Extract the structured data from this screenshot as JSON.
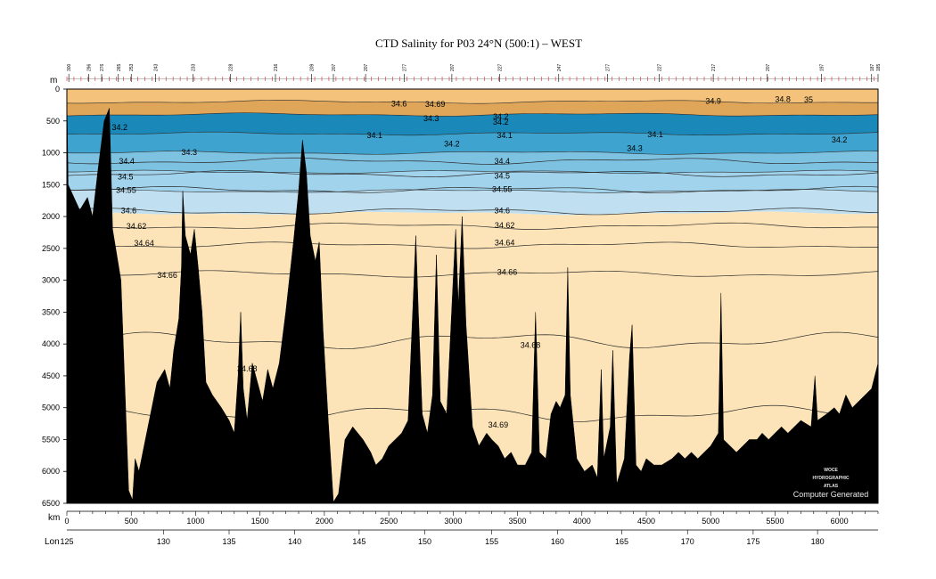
{
  "chart_data": {
    "type": "area",
    "title": "CTD Salinity for P03 24°N (500:1) – WEST",
    "y_unit_label": "m",
    "x_unit_label": "km",
    "lon_label": "Lon",
    "y_axis": {
      "range": [
        0,
        6500
      ],
      "inverted": true,
      "ticks": [
        "0",
        "500",
        "1000",
        "1500",
        "2000",
        "2500",
        "3000",
        "3500",
        "4000",
        "4500",
        "5000",
        "5500",
        "6000",
        "6500"
      ]
    },
    "x_axis": {
      "range": [
        0,
        6300
      ],
      "ticks": [
        "0",
        "500",
        "1000",
        "1500",
        "2000",
        "2500",
        "3000",
        "3500",
        "4000",
        "4500",
        "5000",
        "5500",
        "6000"
      ]
    },
    "lon_axis": {
      "start_value": 125,
      "start_label": "125",
      "ticks": [
        {
          "lon": 130,
          "km": 750,
          "label": "130"
        },
        {
          "lon": 135,
          "km": 1260,
          "label": "135"
        },
        {
          "lon": 140,
          "km": 1770,
          "label": "140"
        },
        {
          "lon": 145,
          "km": 2270,
          "label": "145"
        },
        {
          "lon": 150,
          "km": 2780,
          "label": "150"
        },
        {
          "lon": 155,
          "km": 3300,
          "label": "155"
        },
        {
          "lon": 160,
          "km": 3810,
          "label": "160"
        },
        {
          "lon": 165,
          "km": 4310,
          "label": "165"
        },
        {
          "lon": 170,
          "km": 4820,
          "label": "170"
        },
        {
          "lon": 175,
          "km": 5330,
          "label": "175"
        },
        {
          "lon": 180,
          "km": 5830,
          "label": "180"
        }
      ]
    },
    "stations": [
      {
        "km": 15,
        "label": "300"
      },
      {
        "km": 170,
        "label": "296"
      },
      {
        "km": 270,
        "label": "276"
      },
      {
        "km": 400,
        "label": "265"
      },
      {
        "km": 500,
        "label": "253"
      },
      {
        "km": 690,
        "label": "243"
      },
      {
        "km": 980,
        "label": "233"
      },
      {
        "km": 1270,
        "label": "228"
      },
      {
        "km": 1620,
        "label": "216"
      },
      {
        "km": 1900,
        "label": "209"
      },
      {
        "km": 2070,
        "label": "207"
      },
      {
        "km": 2320,
        "label": "207"
      },
      {
        "km": 2620,
        "label": "277"
      },
      {
        "km": 2990,
        "label": "207"
      },
      {
        "km": 3360,
        "label": "227"
      },
      {
        "km": 3820,
        "label": "247"
      },
      {
        "km": 4200,
        "label": "277"
      },
      {
        "km": 4600,
        "label": "227"
      },
      {
        "km": 5020,
        "label": "217"
      },
      {
        "km": 5440,
        "label": "207"
      },
      {
        "km": 5860,
        "label": "197"
      },
      {
        "km": 6250,
        "label": "187"
      },
      {
        "km": 6300,
        "label": "185"
      }
    ],
    "bands": [
      {
        "to": 200,
        "color": "#f4c27a"
      },
      {
        "to": 400,
        "color": "#dfa659"
      },
      {
        "to": 700,
        "color": "#1a88b8"
      },
      {
        "to": 1000,
        "color": "#3fa3cf"
      },
      {
        "to": 1300,
        "color": "#7ec2e2"
      },
      {
        "to": 1600,
        "color": "#a2d3ec"
      },
      {
        "to": 1950,
        "color": "#c0e0f1"
      },
      {
        "to": 6500,
        "color": "#fde4b8"
      }
    ],
    "contours": [
      {
        "value": "34.4",
        "depth": 1130
      },
      {
        "value": "34.5",
        "depth": 1330
      },
      {
        "value": "34.55",
        "depth": 1580
      },
      {
        "value": "34.6",
        "depth": 1920
      },
      {
        "value": "34.62",
        "depth": 2150
      },
      {
        "value": "34.64",
        "depth": 2450
      },
      {
        "value": "34.66",
        "depth": 2900
      },
      {
        "value": "34.68",
        "depth": 3950
      },
      {
        "value": "34.69",
        "depth": 5100
      }
    ],
    "labels": [
      {
        "text": "34.6",
        "km": 2580,
        "depth": 230
      },
      {
        "text": "34.69",
        "km": 2860,
        "depth": 240
      },
      {
        "text": "34.9",
        "km": 5020,
        "depth": 190
      },
      {
        "text": "34.8",
        "km": 5560,
        "depth": 160
      },
      {
        "text": "35",
        "km": 5760,
        "depth": 170
      },
      {
        "text": "34.3",
        "km": 2830,
        "depth": 460
      },
      {
        "text": "34.2",
        "km": 3370,
        "depth": 430
      },
      {
        "text": "34.2",
        "km": 3370,
        "depth": 520
      },
      {
        "text": "34.2",
        "km": 410,
        "depth": 600
      },
      {
        "text": "34.1",
        "km": 2390,
        "depth": 730
      },
      {
        "text": "34.1",
        "km": 3400,
        "depth": 730
      },
      {
        "text": "34.1",
        "km": 4570,
        "depth": 710
      },
      {
        "text": "34.2",
        "km": 2990,
        "depth": 860
      },
      {
        "text": "34.2",
        "km": 6000,
        "depth": 800
      },
      {
        "text": "34.3",
        "km": 950,
        "depth": 990
      },
      {
        "text": "34.3",
        "km": 4410,
        "depth": 930
      },
      {
        "text": "34.4",
        "km": 465,
        "depth": 1130
      },
      {
        "text": "34.4",
        "km": 3380,
        "depth": 1130
      },
      {
        "text": "34.5",
        "km": 455,
        "depth": 1380
      },
      {
        "text": "34.5",
        "km": 3380,
        "depth": 1360
      },
      {
        "text": "34.55",
        "km": 460,
        "depth": 1590
      },
      {
        "text": "34.55",
        "km": 3380,
        "depth": 1570
      },
      {
        "text": "34.6",
        "km": 480,
        "depth": 1910
      },
      {
        "text": "34.6",
        "km": 3380,
        "depth": 1910
      },
      {
        "text": "34.62",
        "km": 540,
        "depth": 2150
      },
      {
        "text": "34.62",
        "km": 3400,
        "depth": 2140
      },
      {
        "text": "34.64",
        "km": 600,
        "depth": 2420
      },
      {
        "text": "34.64",
        "km": 3400,
        "depth": 2410
      },
      {
        "text": "34.66",
        "km": 780,
        "depth": 2920
      },
      {
        "text": "34.66",
        "km": 3420,
        "depth": 2870
      },
      {
        "text": "34.68",
        "km": 3600,
        "depth": 4020
      },
      {
        "text": "34.68",
        "km": 1400,
        "depth": 4390
      },
      {
        "text": "34.69",
        "km": 3350,
        "depth": 5270
      }
    ],
    "bathymetry": [
      [
        0,
        100
      ],
      [
        10,
        1500
      ],
      [
        100,
        1900
      ],
      [
        160,
        1700
      ],
      [
        200,
        2000
      ],
      [
        240,
        1300
      ],
      [
        290,
        500
      ],
      [
        330,
        300
      ],
      [
        355,
        2200
      ],
      [
        420,
        3000
      ],
      [
        480,
        6300
      ],
      [
        510,
        6450
      ],
      [
        530,
        5800
      ],
      [
        560,
        6000
      ],
      [
        620,
        5400
      ],
      [
        660,
        5000
      ],
      [
        700,
        4600
      ],
      [
        760,
        4400
      ],
      [
        800,
        4700
      ],
      [
        830,
        4100
      ],
      [
        870,
        3600
      ],
      [
        890,
        2800
      ],
      [
        900,
        1600
      ],
      [
        920,
        2300
      ],
      [
        960,
        2600
      ],
      [
        990,
        2200
      ],
      [
        1020,
        2800
      ],
      [
        1050,
        3500
      ],
      [
        1080,
        4600
      ],
      [
        1130,
        4800
      ],
      [
        1200,
        5000
      ],
      [
        1260,
        5200
      ],
      [
        1300,
        5400
      ],
      [
        1330,
        4500
      ],
      [
        1350,
        3500
      ],
      [
        1370,
        4700
      ],
      [
        1400,
        5200
      ],
      [
        1440,
        4300
      ],
      [
        1480,
        4600
      ],
      [
        1520,
        4900
      ],
      [
        1560,
        4400
      ],
      [
        1600,
        4700
      ],
      [
        1650,
        4300
      ],
      [
        1700,
        3500
      ],
      [
        1760,
        2400
      ],
      [
        1800,
        1600
      ],
      [
        1830,
        800
      ],
      [
        1860,
        1300
      ],
      [
        1890,
        2300
      ],
      [
        1930,
        2700
      ],
      [
        1960,
        2400
      ],
      [
        1990,
        3800
      ],
      [
        2030,
        5200
      ],
      [
        2070,
        6480
      ],
      [
        2110,
        6350
      ],
      [
        2160,
        5500
      ],
      [
        2220,
        5300
      ],
      [
        2300,
        5500
      ],
      [
        2360,
        5700
      ],
      [
        2400,
        5900
      ],
      [
        2450,
        5800
      ],
      [
        2500,
        5600
      ],
      [
        2550,
        5500
      ],
      [
        2600,
        5400
      ],
      [
        2650,
        5200
      ],
      [
        2690,
        3300
      ],
      [
        2710,
        2300
      ],
      [
        2730,
        3500
      ],
      [
        2760,
        5100
      ],
      [
        2800,
        5400
      ],
      [
        2840,
        4800
      ],
      [
        2870,
        2600
      ],
      [
        2900,
        4900
      ],
      [
        2950,
        5100
      ],
      [
        3000,
        3000
      ],
      [
        3020,
        2200
      ],
      [
        3040,
        3400
      ],
      [
        3070,
        2000
      ],
      [
        3100,
        3700
      ],
      [
        3150,
        5300
      ],
      [
        3200,
        5600
      ],
      [
        3260,
        5400
      ],
      [
        3300,
        5500
      ],
      [
        3350,
        5600
      ],
      [
        3400,
        5800
      ],
      [
        3450,
        5700
      ],
      [
        3500,
        5900
      ],
      [
        3560,
        5900
      ],
      [
        3610,
        5700
      ],
      [
        3640,
        3500
      ],
      [
        3670,
        5700
      ],
      [
        3720,
        5800
      ],
      [
        3760,
        5100
      ],
      [
        3800,
        4900
      ],
      [
        3830,
        5000
      ],
      [
        3870,
        4800
      ],
      [
        3890,
        2800
      ],
      [
        3910,
        4800
      ],
      [
        3960,
        5800
      ],
      [
        4020,
        6000
      ],
      [
        4080,
        5900
      ],
      [
        4120,
        6100
      ],
      [
        4150,
        4400
      ],
      [
        4170,
        5800
      ],
      [
        4220,
        5300
      ],
      [
        4240,
        4100
      ],
      [
        4270,
        6200
      ],
      [
        4330,
        5800
      ],
      [
        4370,
        4200
      ],
      [
        4390,
        3700
      ],
      [
        4420,
        5900
      ],
      [
        4460,
        6000
      ],
      [
        4500,
        5800
      ],
      [
        4560,
        5900
      ],
      [
        4620,
        5900
      ],
      [
        4700,
        5800
      ],
      [
        4750,
        5700
      ],
      [
        4800,
        5800
      ],
      [
        4850,
        5700
      ],
      [
        4900,
        5800
      ],
      [
        4950,
        5700
      ],
      [
        5000,
        5600
      ],
      [
        5060,
        5400
      ],
      [
        5080,
        3200
      ],
      [
        5100,
        5500
      ],
      [
        5150,
        5600
      ],
      [
        5200,
        5700
      ],
      [
        5250,
        5600
      ],
      [
        5300,
        5500
      ],
      [
        5360,
        5500
      ],
      [
        5400,
        5400
      ],
      [
        5450,
        5500
      ],
      [
        5500,
        5400
      ],
      [
        5550,
        5300
      ],
      [
        5600,
        5400
      ],
      [
        5700,
        5200
      ],
      [
        5780,
        5300
      ],
      [
        5810,
        4500
      ],
      [
        5830,
        5200
      ],
      [
        5900,
        5100
      ],
      [
        5960,
        5000
      ],
      [
        6000,
        5100
      ],
      [
        6050,
        4800
      ],
      [
        6100,
        5000
      ],
      [
        6150,
        4900
      ],
      [
        6200,
        4800
      ],
      [
        6250,
        4700
      ],
      [
        6300,
        4300
      ]
    ]
  },
  "watermark": {
    "logo_lines": [
      "WOCE",
      "HYDROGRAPHIC",
      "ATLAS"
    ],
    "credit": "Computer Generated"
  },
  "colors": {
    "bathymetry": "#000000",
    "contour": "#2b2b2b",
    "station_mark": "#e02020"
  }
}
